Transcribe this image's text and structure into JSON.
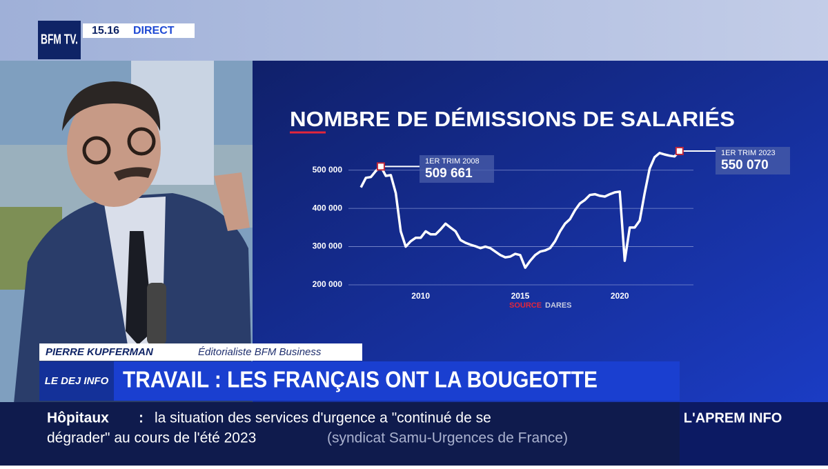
{
  "broadcast": {
    "channel_logo": "BFM TV.",
    "time": "15.16",
    "live": "DIRECT"
  },
  "chart_data": {
    "type": "line",
    "title": "NOMBRE DE DÉMISSIONS DE SALARIÉS",
    "source_label": "SOURCE",
    "source": "DARES",
    "x": [
      2007,
      2007.25,
      2007.5,
      2007.75,
      2008,
      2008.25,
      2008.5,
      2008.75,
      2009,
      2009.25,
      2009.5,
      2009.75,
      2010,
      2010.25,
      2010.5,
      2010.75,
      2011,
      2011.25,
      2011.5,
      2011.75,
      2012,
      2012.25,
      2012.5,
      2012.75,
      2013,
      2013.25,
      2013.5,
      2013.75,
      2014,
      2014.25,
      2014.5,
      2014.75,
      2015,
      2015.25,
      2015.5,
      2015.75,
      2016,
      2016.25,
      2016.5,
      2016.75,
      2017,
      2017.25,
      2017.5,
      2017.75,
      2018,
      2018.25,
      2018.5,
      2018.75,
      2019,
      2019.25,
      2019.5,
      2019.75,
      2020,
      2020.25,
      2020.5,
      2020.75,
      2021,
      2021.25,
      2021.5,
      2021.75,
      2022,
      2022.25,
      2022.5,
      2022.75,
      2023
    ],
    "series": [
      {
        "name": "Démissions",
        "color": "#ffffff",
        "values": [
          455000,
          480000,
          482000,
          498000,
          509661,
          485000,
          487000,
          440000,
          340000,
          300000,
          314000,
          323000,
          323000,
          340000,
          332000,
          332000,
          345000,
          360000,
          350000,
          340000,
          317000,
          310000,
          305000,
          301000,
          296000,
          300000,
          296000,
          287000,
          278000,
          272000,
          274000,
          281000,
          278000,
          245000,
          263000,
          278000,
          287000,
          290000,
          296000,
          314000,
          340000,
          360000,
          372000,
          395000,
          413000,
          422000,
          435000,
          437000,
          433000,
          431000,
          437000,
          442000,
          444000,
          263000,
          350000,
          350000,
          368000,
          440000,
          504000,
          534000,
          545000,
          541000,
          538000,
          536000,
          550070
        ]
      }
    ],
    "annotations": [
      {
        "period": "1ER TRIM 2008",
        "x": 2008,
        "value": 509661,
        "value_label": "509 661"
      },
      {
        "period": "1ER TRIM 2023",
        "x": 2023,
        "value": 550070,
        "value_label": "550 070"
      }
    ],
    "xlim": [
      2006.2,
      2023.7
    ],
    "xticks": [
      2010,
      2015,
      2020
    ],
    "ylim": [
      200000,
      550000
    ],
    "yticks": [
      {
        "value": 200000,
        "label": "200 000"
      },
      {
        "value": 300000,
        "label": "300 000"
      },
      {
        "value": 400000,
        "label": "400 000"
      },
      {
        "value": 500000,
        "label": "500 000"
      }
    ],
    "grid": true
  },
  "lower_third": {
    "name": "PIERRE KUPFERMAN",
    "role": "Éditorialiste BFM Business",
    "show": "LE DEJ INFO",
    "headline": "TRAVAIL : LES FRANÇAIS ONT LA BOUGEOTTE"
  },
  "ticker": {
    "topic": "Hôpitaux",
    "separator": ":",
    "line1": "la situation des services d'urgence a \"continué de se",
    "line2": "dégrader\" au cours de l'été 2023",
    "attribution": "(syndicat Samu-Urgences de France)",
    "next_show": "L'APREM INFO"
  }
}
